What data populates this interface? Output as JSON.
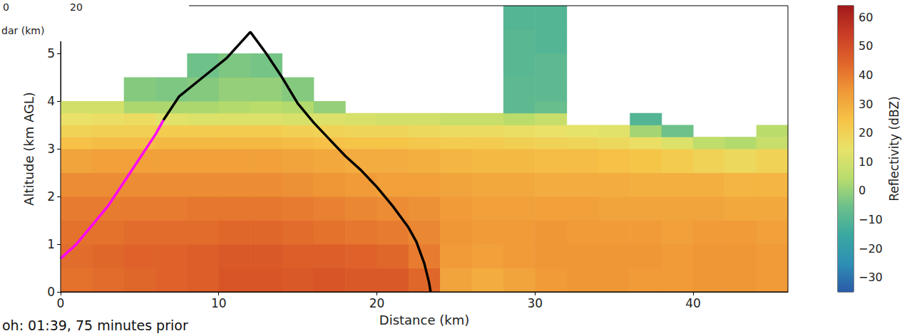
{
  "chart_data": {
    "type": "heatmap",
    "x_label": "Distance (km)",
    "y_label": "Altitude (km AGL)",
    "xlim": [
      0,
      46
    ],
    "xticks": [
      0,
      10,
      20,
      30,
      40
    ],
    "ylim": [
      0,
      6
    ],
    "yticks": [
      0,
      1,
      2,
      3,
      4,
      5
    ],
    "grid": false,
    "x_edges": [
      0,
      2,
      4,
      6,
      8,
      10,
      12,
      14,
      16,
      18,
      20,
      22,
      24,
      26,
      28,
      30,
      32,
      34,
      36,
      38,
      40,
      42,
      44,
      46
    ],
    "y_edges": [
      0,
      0.5,
      1,
      1.5,
      2,
      2.5,
      3,
      3.25,
      3.5,
      3.75,
      4,
      4.5,
      5,
      5.5,
      6
    ],
    "cells": [
      [
        42,
        43,
        44,
        45,
        46,
        48,
        48,
        47,
        48,
        47,
        47,
        44,
        32,
        30,
        32,
        34,
        35,
        35,
        34,
        34,
        35,
        35,
        34
      ],
      [
        43,
        44,
        45,
        45,
        46,
        47,
        47,
        46,
        46,
        45,
        44,
        40,
        34,
        33,
        34,
        35,
        35,
        35,
        35,
        34,
        35,
        35,
        34
      ],
      [
        42,
        42,
        43,
        43,
        43,
        44,
        44,
        43,
        42,
        41,
        40,
        38,
        35,
        34,
        34,
        35,
        34,
        34,
        34,
        33,
        34,
        34,
        33
      ],
      [
        40,
        40,
        40,
        40,
        41,
        41,
        41,
        40,
        39,
        38,
        37,
        36,
        34,
        33,
        33,
        33,
        33,
        32,
        32,
        32,
        32,
        31,
        31
      ],
      [
        37,
        37,
        37,
        37,
        37,
        37,
        37,
        36,
        35,
        34,
        33,
        33,
        32,
        31,
        31,
        30,
        30,
        30,
        29,
        29,
        29,
        28,
        28
      ],
      [
        32,
        33,
        33,
        33,
        33,
        33,
        33,
        32,
        31,
        30,
        30,
        29,
        28,
        27,
        27,
        26,
        26,
        25,
        24,
        22,
        20,
        18,
        20
      ],
      [
        25,
        26,
        26,
        27,
        27,
        27,
        27,
        26,
        25,
        24,
        24,
        23,
        22,
        22,
        21,
        20,
        19,
        18,
        16,
        12,
        6,
        4,
        8
      ],
      [
        20,
        21,
        21,
        22,
        22,
        22,
        22,
        21,
        20,
        19,
        19,
        18,
        17,
        17,
        16,
        15,
        14,
        13,
        2,
        -5,
        null,
        null,
        5
      ],
      [
        15,
        16,
        17,
        13,
        12,
        12,
        12,
        11,
        12,
        11,
        10,
        10,
        8,
        8,
        5,
        8,
        null,
        null,
        -10,
        null,
        null,
        null,
        null
      ],
      [
        10,
        10,
        3,
        3,
        3,
        4,
        5,
        4,
        0,
        null,
        null,
        null,
        null,
        null,
        -8,
        -6,
        null,
        null,
        null,
        null,
        null,
        null,
        null
      ],
      [
        null,
        null,
        -2,
        -3,
        -2,
        0,
        0,
        -2,
        null,
        null,
        null,
        null,
        null,
        null,
        -8,
        -8,
        null,
        null,
        null,
        null,
        null,
        null,
        null
      ],
      [
        null,
        null,
        null,
        null,
        -5,
        -3,
        -4,
        null,
        null,
        null,
        null,
        null,
        null,
        null,
        -9,
        -8,
        null,
        null,
        null,
        null,
        null,
        null,
        null
      ],
      [
        null,
        null,
        null,
        null,
        null,
        null,
        null,
        null,
        null,
        null,
        null,
        null,
        null,
        null,
        -9,
        -10,
        null,
        null,
        null,
        null,
        null,
        null,
        null
      ],
      [
        null,
        null,
        null,
        null,
        null,
        null,
        null,
        null,
        null,
        null,
        null,
        null,
        null,
        null,
        -10,
        -10,
        null,
        null,
        null,
        null,
        null,
        null,
        null
      ]
    ],
    "colorbar": {
      "label": "Reflectivity (dBZ)",
      "clim": [
        -35,
        64
      ],
      "ticks": [
        {
          "value": -30,
          "label": "−30"
        },
        {
          "value": -20,
          "label": "−20"
        },
        {
          "value": -10,
          "label": "−10"
        },
        0,
        10,
        20,
        30,
        40,
        50,
        60
      ]
    },
    "series": [
      {
        "type": "line",
        "color": "#000000",
        "x": [
          6.5,
          7.5,
          9,
          10.5,
          12,
          13,
          14,
          15,
          16,
          17,
          18,
          19,
          20,
          21,
          22,
          22.5,
          23,
          23.3,
          23.4
        ],
        "values": [
          3.6,
          4.1,
          4.5,
          4.9,
          5.45,
          5.0,
          4.5,
          3.95,
          3.55,
          3.2,
          2.85,
          2.55,
          2.2,
          1.8,
          1.35,
          1.05,
          0.6,
          0.2,
          0
        ]
      },
      {
        "type": "line",
        "color": "#ff00ff",
        "x": [
          0,
          1,
          2,
          3,
          4,
          5,
          6,
          6.5
        ],
        "values": [
          0.7,
          1.0,
          1.4,
          1.8,
          2.3,
          2.8,
          3.3,
          3.6
        ]
      }
    ],
    "annotations": [
      "0",
      "20",
      "dar (km)",
      "oh: 01:39, 75 minutes prior"
    ]
  }
}
